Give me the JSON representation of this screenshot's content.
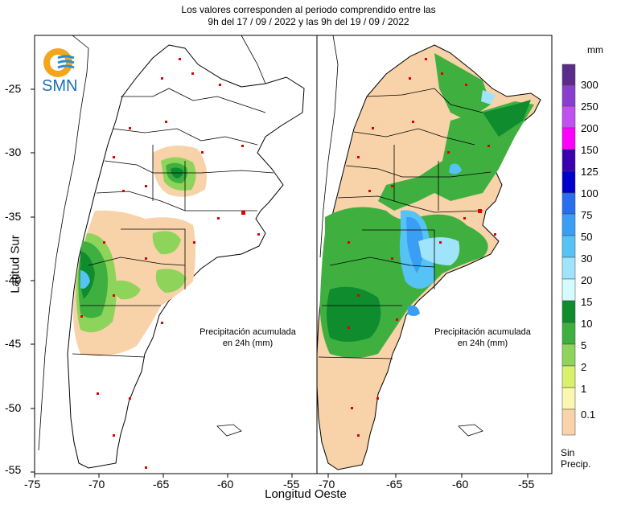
{
  "header": {
    "line1": "Los valores corresponden al periodo comprendido entre las",
    "line2": "9h del 17 / 09 / 2022  y las 9h del 19 / 09 / 2022"
  },
  "logo": {
    "text": "SMN"
  },
  "axes": {
    "ylabel": "Latitud Sur",
    "xlabel": "Longitud Oeste",
    "y_ticks": [
      "-25",
      "-30",
      "-35",
      "-40",
      "-45",
      "-50",
      "-55"
    ],
    "x_ticks_left": [
      "-75",
      "-70",
      "-65",
      "-60",
      "-55"
    ],
    "x_ticks_right": [
      "-70",
      "-65",
      "-60",
      "-55"
    ]
  },
  "panels": {
    "left_caption": "Precipitación acumulada\nen 24h (mm)",
    "right_caption": "Precipitación acumulada\nen 24h (mm)"
  },
  "legend": {
    "unit": "mm",
    "no_data_label": "Sin\nPrecip.",
    "items": [
      {
        "label": "300",
        "color": "#5b2c8c"
      },
      {
        "label": "250",
        "color": "#8a3ed0"
      },
      {
        "label": "200",
        "color": "#c050f0"
      },
      {
        "label": "150",
        "color": "#ff00ff"
      },
      {
        "label": "125",
        "color": "#3a00b0"
      },
      {
        "label": "100",
        "color": "#0000cc"
      },
      {
        "label": "75",
        "color": "#2a6ef0"
      },
      {
        "label": "50",
        "color": "#3b9ef5"
      },
      {
        "label": "30",
        "color": "#56c3f7"
      },
      {
        "label": "20",
        "color": "#9fe4fb"
      },
      {
        "label": "15",
        "color": "#d6fbff"
      },
      {
        "label": "10",
        "color": "#0f8c2e"
      },
      {
        "label": "5",
        "color": "#3fb040"
      },
      {
        "label": "2",
        "color": "#8ed45a"
      },
      {
        "label": "1",
        "color": "#d8f06a"
      },
      {
        "label": "0.1",
        "color": "#fcf7b0"
      },
      {
        "label": "",
        "color": "#f8d2a8"
      }
    ]
  }
}
